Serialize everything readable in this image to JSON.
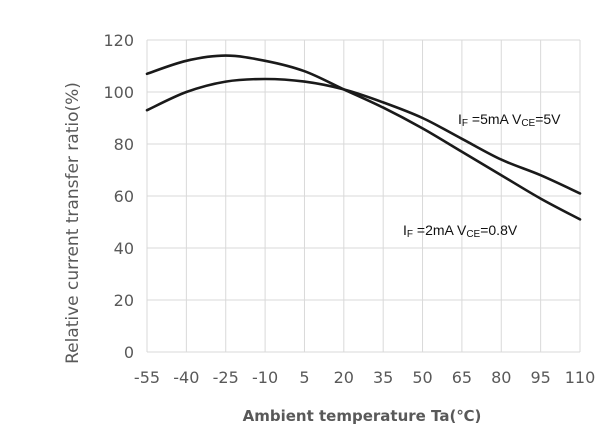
{
  "chart_data": {
    "type": "line",
    "title": "",
    "xlabel": "Ambient temperature Ta(℃)",
    "ylabel": "Relative current transfer ratio(%)",
    "xlim": [
      -55,
      110
    ],
    "ylim": [
      0,
      120
    ],
    "x_ticks": [
      -55,
      -40,
      -25,
      -10,
      5,
      20,
      35,
      50,
      65,
      80,
      95,
      110
    ],
    "y_ticks": [
      0,
      20,
      40,
      60,
      80,
      100,
      120
    ],
    "grid": true,
    "colors": {
      "line": "#1a1a1a",
      "grid": "#d9d9d9",
      "text": "#595959"
    },
    "series": [
      {
        "label": {
          "main1": "I",
          "sub1": "F",
          "main2": " =5mA  V",
          "sub2": "CE",
          "main3": "=5V"
        },
        "x": [
          -55,
          -40,
          -25,
          -10,
          5,
          20,
          35,
          50,
          65,
          80,
          95,
          110
        ],
        "y": [
          93,
          100,
          104,
          105,
          104,
          101,
          96,
          90,
          82,
          74,
          68,
          61
        ]
      },
      {
        "label": {
          "main1": "I",
          "sub1": "F",
          "main2": " =2mA V",
          "sub2": "CE",
          "main3": "=0.8V"
        },
        "x": [
          -55,
          -40,
          -25,
          -10,
          5,
          20,
          35,
          50,
          65,
          80,
          95,
          110
        ],
        "y": [
          107,
          112,
          114,
          112,
          108,
          101,
          94,
          86,
          77,
          68,
          59,
          51
        ]
      }
    ]
  }
}
